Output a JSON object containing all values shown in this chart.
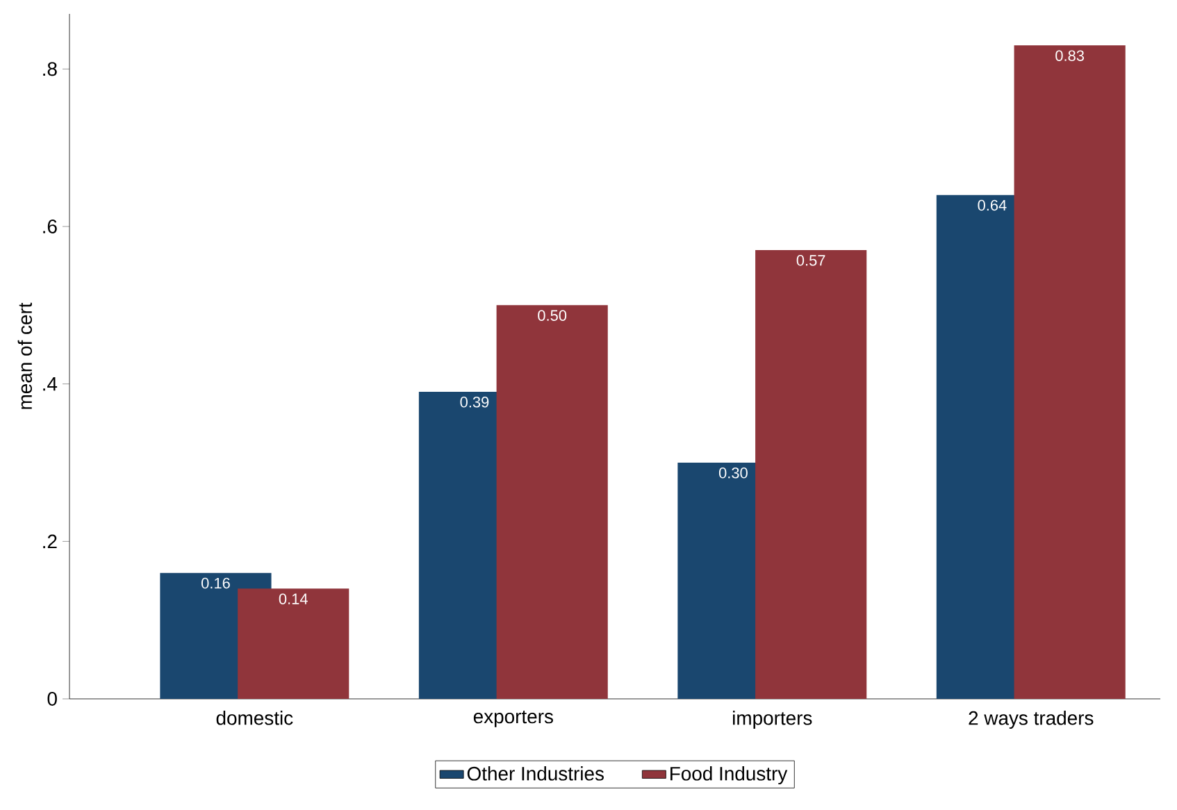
{
  "chart_data": {
    "type": "bar",
    "ylabel": "mean of cert",
    "categories": [
      "domestic",
      "exporters",
      "importers",
      "2 ways traders"
    ],
    "series": [
      {
        "name": "Other Industries",
        "color": "#1a476f",
        "values": [
          0.16,
          0.39,
          0.3,
          0.64
        ],
        "value_labels": [
          "0.16",
          "0.39",
          "0.30",
          "0.64"
        ]
      },
      {
        "name": "Food Industry",
        "color": "#90353b",
        "values": [
          0.14,
          0.5,
          0.57,
          0.83
        ],
        "value_labels": [
          "0.14",
          "0.50",
          "0.57",
          "0.83"
        ]
      }
    ],
    "ylim": [
      0,
      0.87
    ],
    "yticks": [
      {
        "value": 0,
        "label": "0"
      },
      {
        "value": 0.2,
        "label": ".2"
      },
      {
        "value": 0.4,
        "label": ".4"
      },
      {
        "value": 0.6,
        "label": ".6"
      },
      {
        "value": 0.8,
        "label": ".8"
      }
    ],
    "grid": false,
    "legend": "bottom"
  }
}
